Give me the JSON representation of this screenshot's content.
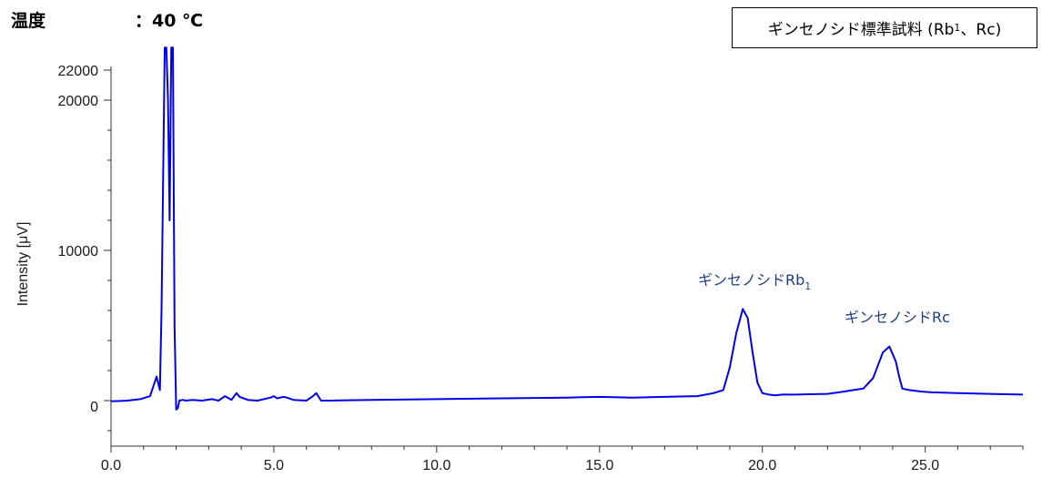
{
  "header": {
    "temperature_label": "温度",
    "temperature_value": "：40 ℃",
    "sample_title_prefix": "ギンセノシド標準試料 (Rb",
    "sample_title_sub": "1",
    "sample_title_suffix": "、Rc)"
  },
  "chart_data": {
    "type": "line",
    "title": "",
    "xlabel": "",
    "ylabel": "Intensity [μV]",
    "xlim": [
      0,
      28
    ],
    "ylim": [
      -3000,
      23500
    ],
    "xticks": [
      "0.0",
      "5.0",
      "10.0",
      "15.0",
      "20.0",
      "25.0"
    ],
    "xtick_values": [
      0,
      5,
      10,
      15,
      20,
      25
    ],
    "yticks": [
      "0",
      "10000",
      "20000",
      "22000"
    ],
    "ytick_values": [
      0,
      10000,
      20000,
      22000
    ],
    "line_color": "#0000ee",
    "series": [
      {
        "x": [
          0,
          0.5,
          0.9,
          1.2,
          1.4,
          1.5,
          1.55,
          1.6,
          1.65,
          1.7,
          1.75,
          1.8,
          1.85,
          1.9,
          1.95,
          2.0,
          2.05,
          2.1,
          2.2,
          2.3,
          2.5,
          2.8,
          3.1,
          3.2,
          3.3,
          3.5,
          3.7,
          3.85,
          3.95,
          4.2,
          4.5,
          4.9,
          5.0,
          5.1,
          5.3,
          5.4,
          5.6,
          6.0,
          6.2,
          6.3,
          6.45,
          6.7,
          8.0,
          10.0,
          12.0,
          14.0,
          15.0,
          16.0,
          17.0,
          18.0,
          18.5,
          18.8,
          19.0,
          19.2,
          19.4,
          19.55,
          19.7,
          19.85,
          20.0,
          20.2,
          20.4,
          20.6,
          21.0,
          22.0,
          22.5,
          22.8,
          23.1,
          23.4,
          23.7,
          23.9,
          24.1,
          24.2,
          24.3,
          24.5,
          24.7,
          24.9,
          25.2,
          26.0,
          27.0,
          28.0
        ],
        "y": [
          -50,
          0,
          100,
          300,
          1600,
          700,
          6000,
          15000,
          23500,
          23500,
          20000,
          12000,
          23500,
          23500,
          5000,
          -600,
          -500,
          0,
          50,
          0,
          50,
          0,
          100,
          50,
          0,
          300,
          50,
          500,
          250,
          50,
          0,
          200,
          300,
          150,
          250,
          200,
          50,
          0,
          300,
          500,
          0,
          0,
          50,
          100,
          150,
          200,
          250,
          200,
          250,
          300,
          500,
          700,
          2200,
          4500,
          6100,
          5500,
          3200,
          1200,
          500,
          400,
          350,
          400,
          400,
          450,
          600,
          700,
          800,
          1500,
          3200,
          3600,
          2600,
          1600,
          800,
          700,
          650,
          600,
          550,
          500,
          450,
          400
        ]
      }
    ],
    "annotations": [
      {
        "text_main": "ギンセノシドRb",
        "text_sub": "1",
        "x": 19.7
      },
      {
        "text_main": "ギンセノシドRc",
        "text_sub": "",
        "x": 24.2
      }
    ]
  }
}
